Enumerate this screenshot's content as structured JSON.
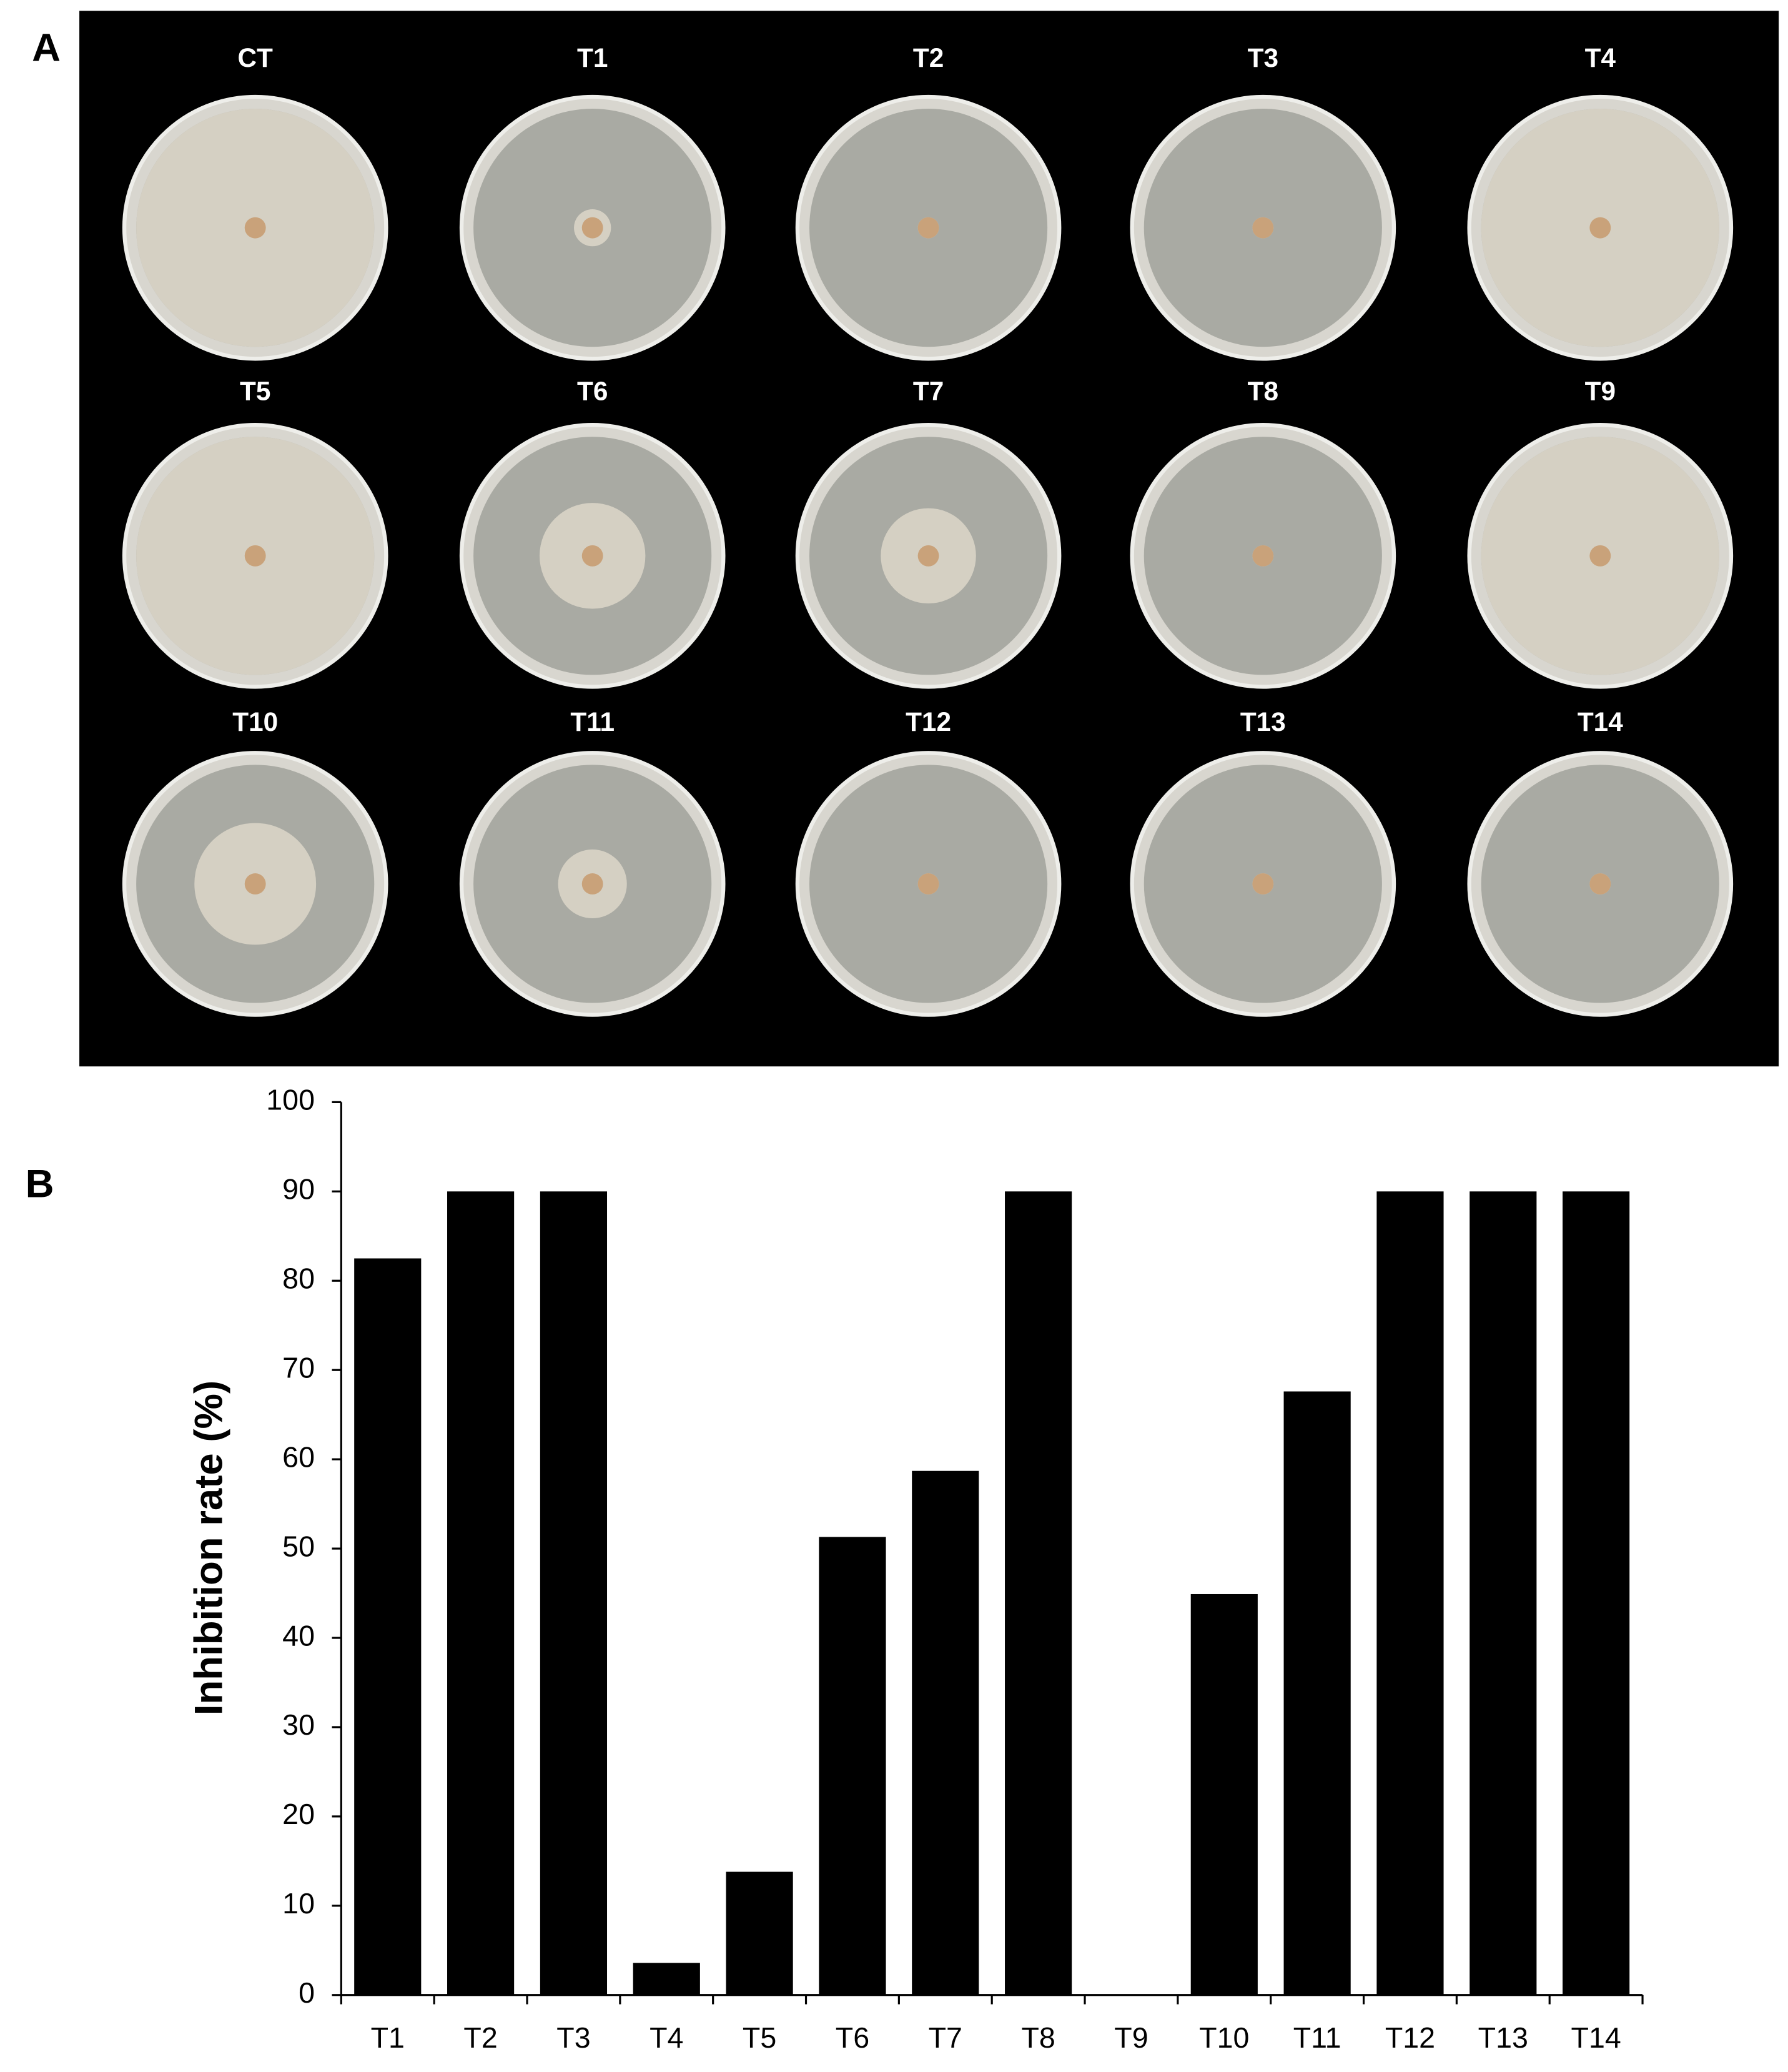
{
  "panel_a": {
    "label": "A",
    "plates": [
      "CT",
      "T1",
      "T2",
      "T3",
      "T4",
      "T5",
      "T6",
      "T7",
      "T8",
      "T9",
      "T10",
      "T11",
      "T12",
      "T13",
      "T14"
    ]
  },
  "chart_data": {
    "type": "bar",
    "panel_label": "B",
    "y_label": "Inhibition rate (%)",
    "categories": [
      "T1",
      "T2",
      "T3",
      "T4",
      "T5",
      "T6",
      "T7",
      "T8",
      "T9",
      "T10",
      "T11",
      "T12",
      "T13",
      "T14"
    ],
    "values": [
      82.5,
      90,
      90,
      3.6,
      13.8,
      51.3,
      58.7,
      90,
      0,
      44.9,
      67.6,
      90,
      90,
      90
    ],
    "color": "#000000",
    "ylim": [
      0,
      100
    ],
    "yticks": [
      0,
      10,
      20,
      30,
      40,
      50,
      60,
      70,
      80,
      90,
      100
    ],
    "grid": false
  }
}
